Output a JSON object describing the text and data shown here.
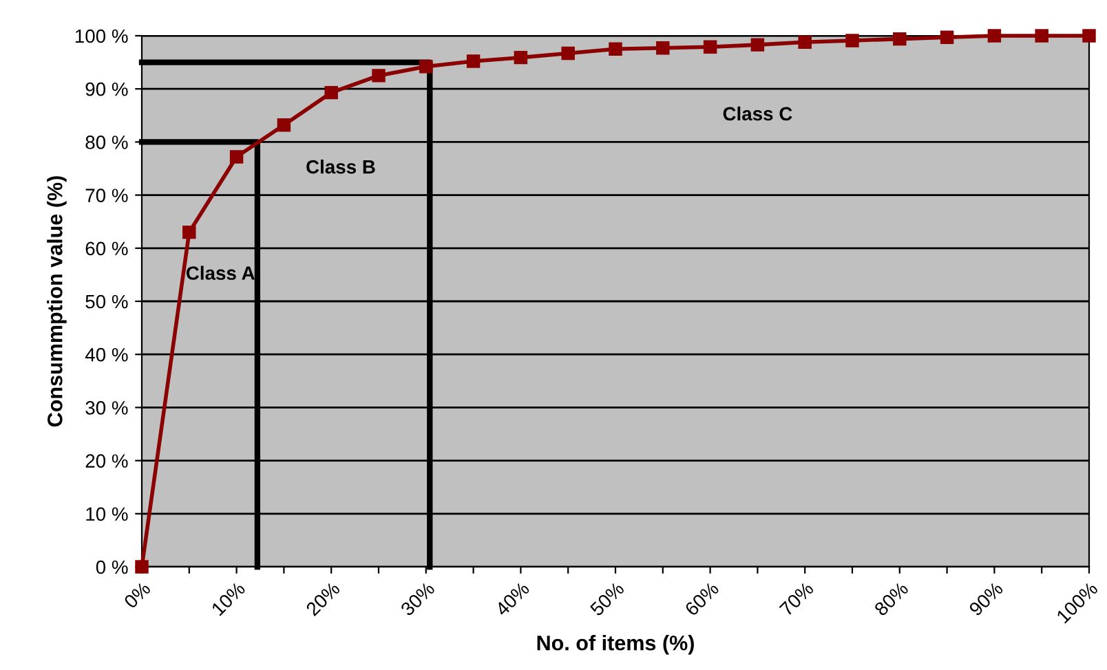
{
  "chart_data": {
    "type": "line",
    "xlabel": "No. of items (%)",
    "ylabel": "Consummption value (%)",
    "x": [
      0,
      5,
      10,
      15,
      20,
      25,
      30,
      35,
      40,
      45,
      50,
      55,
      60,
      65,
      70,
      75,
      80,
      85,
      90,
      95,
      100
    ],
    "series": [
      {
        "color": "#8b0000",
        "marker": "square",
        "values": [
          0,
          63,
          77.2,
          83.2,
          89.3,
          92.5,
          94.2,
          95.2,
          95.9,
          96.7,
          97.5,
          97.7,
          97.9,
          98.3,
          98.8,
          99.1,
          99.4,
          99.7,
          100,
          100,
          100
        ]
      },
      {
        "color": "#000000",
        "marker": "none",
        "x": [
          0,
          12.2,
          12.2
        ],
        "values": [
          80,
          80,
          0
        ]
      },
      {
        "color": "#000000",
        "marker": "none",
        "x": [
          0,
          30.4,
          30.4
        ],
        "values": [
          95,
          95,
          0
        ]
      }
    ],
    "xlim": [
      0,
      100
    ],
    "xticks": [
      {
        "value": 0,
        "label": "0%"
      },
      {
        "value": 5,
        "label": null
      },
      {
        "value": 10,
        "label": "10%"
      },
      {
        "value": 15,
        "label": null
      },
      {
        "value": 20,
        "label": "20%"
      },
      {
        "value": 25,
        "label": null
      },
      {
        "value": 30,
        "label": "30%"
      },
      {
        "value": 35,
        "label": null
      },
      {
        "value": 40,
        "label": "40%"
      },
      {
        "value": 45,
        "label": null
      },
      {
        "value": 50,
        "label": "50%"
      },
      {
        "value": 55,
        "label": null
      },
      {
        "value": 60,
        "label": "60%"
      },
      {
        "value": 65,
        "label": null
      },
      {
        "value": 70,
        "label": "70%"
      },
      {
        "value": 75,
        "label": null
      },
      {
        "value": 80,
        "label": "80%"
      },
      {
        "value": 85,
        "label": null
      },
      {
        "value": 90,
        "label": "90%"
      },
      {
        "value": 95,
        "label": null
      },
      {
        "value": 100,
        "label": "100%"
      }
    ],
    "ylim": [
      0,
      100
    ],
    "yticks": [
      {
        "value": 0,
        "label": "0 %"
      },
      {
        "value": 10,
        "label": "10 %"
      },
      {
        "value": 20,
        "label": "20 %"
      },
      {
        "value": 30,
        "label": "30 %"
      },
      {
        "value": 40,
        "label": "40 %"
      },
      {
        "value": 50,
        "label": "50 %"
      },
      {
        "value": 60,
        "label": "60 %"
      },
      {
        "value": 70,
        "label": "70 %"
      },
      {
        "value": 80,
        "label": "80 %"
      },
      {
        "value": 90,
        "label": "90 %"
      },
      {
        "value": 100,
        "label": "100 %"
      }
    ],
    "grid": "y",
    "annotations": [
      "Class A",
      "Class B",
      "Class C"
    ]
  }
}
